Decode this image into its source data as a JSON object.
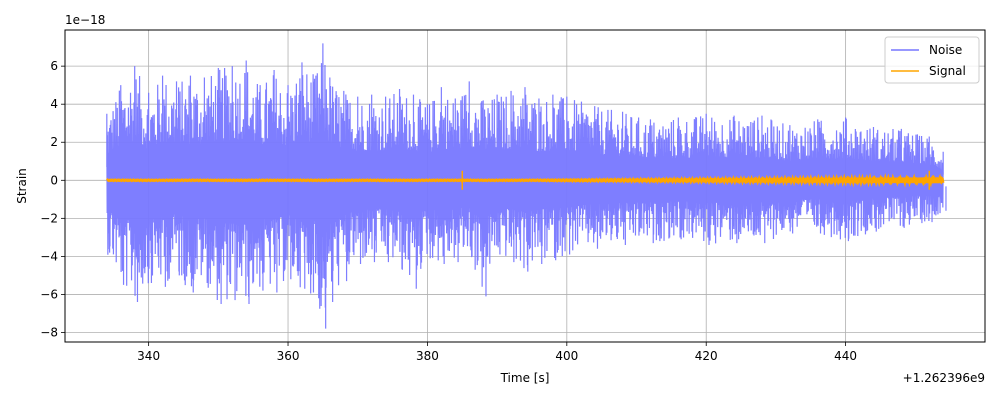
{
  "chart_data": {
    "type": "line",
    "xlabel": "Time [s]",
    "ylabel": "Strain",
    "x_offset_label": "+1.262396e9",
    "y_scale_label": "1e−18",
    "xlim": [
      328,
      460
    ],
    "ylim": [
      -8.5,
      7.9
    ],
    "xticks": [
      340,
      360,
      380,
      400,
      420,
      440
    ],
    "yticks": [
      -8,
      -6,
      -4,
      -2,
      0,
      2,
      4,
      6
    ],
    "grid": true,
    "legend_position": "top-right",
    "colors": {
      "noise": "#7777ff",
      "signal": "#ffa500",
      "grid": "#b0b0b0"
    },
    "series": [
      {
        "name": "Noise",
        "x_range": [
          334,
          454
        ],
        "envelope": {
          "x": [
            334,
            336,
            338,
            340,
            342,
            344,
            346,
            348,
            350,
            352,
            354,
            356,
            358,
            360,
            362,
            364,
            365,
            366,
            368,
            370,
            372,
            374,
            376,
            378,
            380,
            382,
            384,
            386,
            388,
            390,
            392,
            394,
            396,
            398,
            400,
            404,
            408,
            412,
            416,
            420,
            424,
            428,
            432,
            436,
            440,
            444,
            448,
            452,
            454
          ],
          "upper": [
            3.5,
            5.0,
            6.0,
            4.6,
            5.5,
            5.2,
            5.5,
            5.4,
            5.9,
            6.0,
            6.3,
            5.0,
            5.8,
            5.0,
            6.2,
            5.5,
            7.2,
            5.4,
            4.7,
            4.4,
            4.5,
            4.4,
            4.8,
            4.5,
            4.0,
            4.9,
            4.3,
            5.2,
            4.2,
            4.5,
            4.7,
            4.9,
            4.3,
            4.5,
            4.4,
            3.9,
            3.6,
            3.2,
            3.3,
            3.5,
            3.4,
            3.4,
            2.9,
            3.2,
            3.3,
            2.8,
            2.7,
            2.3,
            1.5
          ],
          "lower": [
            -3.8,
            -5.5,
            -6.4,
            -5.4,
            -5.6,
            -5.0,
            -5.9,
            -5.4,
            -6.5,
            -6.3,
            -6.5,
            -5.8,
            -5.9,
            -5.2,
            -5.7,
            -6.2,
            -7.8,
            -6.4,
            -5.3,
            -4.4,
            -4.3,
            -4.3,
            -4.7,
            -5.7,
            -4.1,
            -4.4,
            -4.3,
            -4.0,
            -6.1,
            -3.9,
            -4.3,
            -4.8,
            -4.4,
            -4.2,
            -3.9,
            -3.6,
            -3.4,
            -3.3,
            -3.1,
            -3.4,
            -3.3,
            -3.3,
            -2.8,
            -2.8,
            -3.2,
            -2.7,
            -2.5,
            -2.2,
            -1.6
          ]
        }
      },
      {
        "name": "Signal",
        "x_range": [
          334,
          454
        ],
        "spike_times": [
          385,
          452
        ],
        "spike_amplitude": 0.5
      }
    ]
  }
}
